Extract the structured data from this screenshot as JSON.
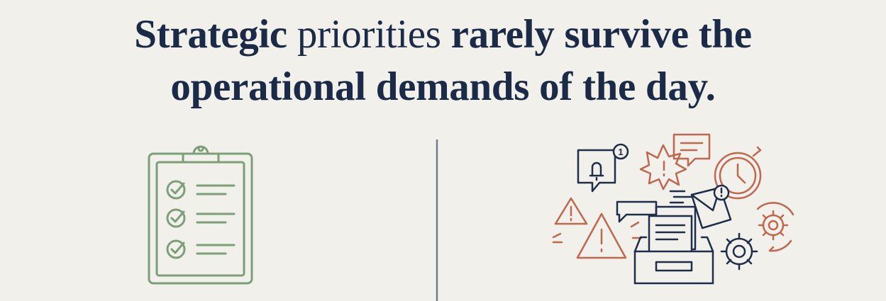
{
  "headline": {
    "segments": [
      {
        "text": "Strategic",
        "weight": "bold"
      },
      {
        "text": "priorities",
        "weight": "normal"
      },
      {
        "text": "rarely survive the",
        "weight": "bold"
      },
      {
        "text": "operational demands of the day.",
        "weight": "bold"
      }
    ]
  },
  "notification_badge": "1"
}
